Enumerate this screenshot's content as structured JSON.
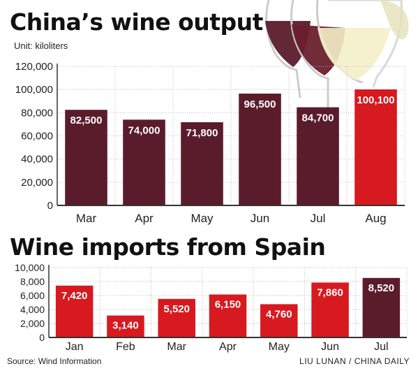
{
  "chart_data": [
    {
      "type": "bar",
      "title": "China’s wine output",
      "subtitle": "Unit: kiloliters",
      "categories": [
        "Mar",
        "Apr",
        "May",
        "Jun",
        "Jul",
        "Aug"
      ],
      "values": [
        82500,
        74000,
        71800,
        96500,
        84700,
        100100
      ],
      "value_labels": [
        "82,500",
        "74,000",
        "71,800",
        "96,500",
        "84,700",
        "100,100"
      ],
      "ylim": [
        0,
        120000
      ],
      "yticks": [
        0,
        20000,
        40000,
        60000,
        80000,
        100000,
        120000
      ],
      "ytick_labels": [
        "0",
        "20,000",
        "40,000",
        "60,000",
        "80,000",
        "100,000",
        "120,000"
      ],
      "grid": true,
      "colors": [
        "#5a1c2b",
        "#5a1c2b",
        "#5a1c2b",
        "#5a1c2b",
        "#5a1c2b",
        "#d71920"
      ]
    },
    {
      "type": "bar",
      "title": "Wine imports from Spain",
      "categories": [
        "Jan",
        "Feb",
        "Mar",
        "Apr",
        "May",
        "Jun",
        "Jul"
      ],
      "values": [
        7420,
        3140,
        5520,
        6150,
        4760,
        7860,
        8520
      ],
      "value_labels": [
        "7,420",
        "3,140",
        "5,520",
        "6,150",
        "4,760",
        "7,860",
        "8,520"
      ],
      "ylim": [
        0,
        10000
      ],
      "yticks": [
        0,
        2000,
        4000,
        6000,
        8000,
        10000
      ],
      "ytick_labels": [
        "0",
        "2,000",
        "4,000",
        "6,000",
        "8,000",
        "10,000"
      ],
      "grid": true,
      "colors": [
        "#d71920",
        "#d71920",
        "#d71920",
        "#d71920",
        "#d71920",
        "#d71920",
        "#5a1c2b"
      ]
    }
  ],
  "footer": {
    "source": "Source: Wind Information",
    "credit": "LIU LUNAN / CHINA DAILY"
  },
  "colors": {
    "grid": "#bbbbbb",
    "axis": "#333333",
    "bar_label": "#ffffff",
    "tick": "#222222"
  }
}
